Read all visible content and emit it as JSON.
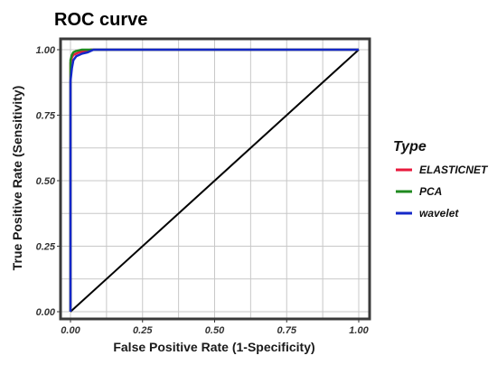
{
  "chart_data": {
    "type": "line",
    "title": "ROC curve",
    "xlabel": "False Positive Rate (1-Specificity)",
    "ylabel": "True Positive Rate (Sensitivity)",
    "xlim": [
      0,
      1
    ],
    "ylim": [
      0,
      1
    ],
    "x_ticks": [
      0,
      0.25,
      0.5,
      0.75,
      1
    ],
    "y_ticks": [
      0,
      0.25,
      0.5,
      0.75,
      1
    ],
    "x_tick_labels": [
      "0.00",
      "0.25",
      "0.50",
      "0.75",
      "1.00"
    ],
    "y_tick_labels": [
      "0.00",
      "0.25",
      "0.50",
      "0.75",
      "1.00"
    ],
    "grid": true,
    "legend_title": "Type",
    "legend_position": "right",
    "series": [
      {
        "name": "ELASTICNET",
        "color": "#e8193c",
        "points": [
          [
            0,
            0
          ],
          [
            0,
            0.95
          ],
          [
            0.005,
            0.97
          ],
          [
            0.01,
            0.98
          ],
          [
            0.02,
            0.985
          ],
          [
            0.03,
            0.99
          ],
          [
            0.05,
            0.995
          ],
          [
            0.07,
            1
          ],
          [
            1,
            1
          ]
        ]
      },
      {
        "name": "PCA",
        "color": "#1f8a1f",
        "points": [
          [
            0,
            0
          ],
          [
            0,
            0.96
          ],
          [
            0.005,
            0.98
          ],
          [
            0.01,
            0.99
          ],
          [
            0.02,
            0.995
          ],
          [
            0.04,
            1
          ],
          [
            0.08,
            1
          ],
          [
            1,
            1
          ]
        ]
      },
      {
        "name": "wavelet",
        "color": "#1428c8",
        "points": [
          [
            0,
            0
          ],
          [
            0,
            0.88
          ],
          [
            0.005,
            0.93
          ],
          [
            0.01,
            0.96
          ],
          [
            0.02,
            0.975
          ],
          [
            0.04,
            0.985
          ],
          [
            0.06,
            0.99
          ],
          [
            0.08,
            1
          ],
          [
            1,
            1
          ]
        ]
      }
    ],
    "reference_line": {
      "points": [
        [
          0,
          0
        ],
        [
          1,
          1
        ]
      ],
      "color": "#000000"
    }
  }
}
